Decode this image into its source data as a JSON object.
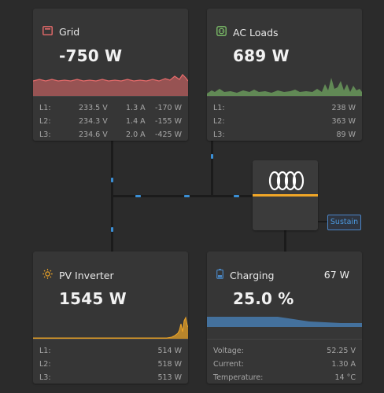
{
  "grid": {
    "title": "Grid",
    "power": "-750 W",
    "icon": "grid-meter-icon",
    "color": "#e86b6b",
    "phases": [
      {
        "label": "L1:",
        "voltage": "233.5 V",
        "current": "1.3 A",
        "power": "-170 W"
      },
      {
        "label": "L2:",
        "voltage": "234.3 V",
        "current": "1.4 A",
        "power": "-155 W"
      },
      {
        "label": "L3:",
        "voltage": "234.6 V",
        "current": "2.0 A",
        "power": "-425 W"
      }
    ]
  },
  "ac_loads": {
    "title": "AC Loads",
    "power": "689 W",
    "icon": "socket-icon",
    "color": "#7ec26a",
    "phases": [
      {
        "label": "L1:",
        "power": "238 W"
      },
      {
        "label": "L2:",
        "power": "363 W"
      },
      {
        "label": "L3:",
        "power": "89 W"
      }
    ]
  },
  "pv_inverter": {
    "title": "PV Inverter",
    "power": "1545 W",
    "icon": "sun-icon",
    "color": "#f0a627",
    "phases": [
      {
        "label": "L1:",
        "power": "514 W"
      },
      {
        "label": "L2:",
        "power": "518 W"
      },
      {
        "label": "L3:",
        "power": "513 W"
      }
    ]
  },
  "charging": {
    "title": "Charging",
    "power": "67 W",
    "soc": "25.0 %",
    "icon": "battery-icon",
    "color": "#4a85c0",
    "stats": [
      {
        "label": "Voltage:",
        "value": "52.25 V"
      },
      {
        "label": "Current:",
        "value": "1.30 A"
      },
      {
        "label": "Temperature:",
        "value": "14 °C"
      }
    ]
  },
  "inverter": {
    "icon": "victron-logo-icon",
    "accent": "#f0a627"
  },
  "sustain": {
    "label": "Sustain"
  }
}
